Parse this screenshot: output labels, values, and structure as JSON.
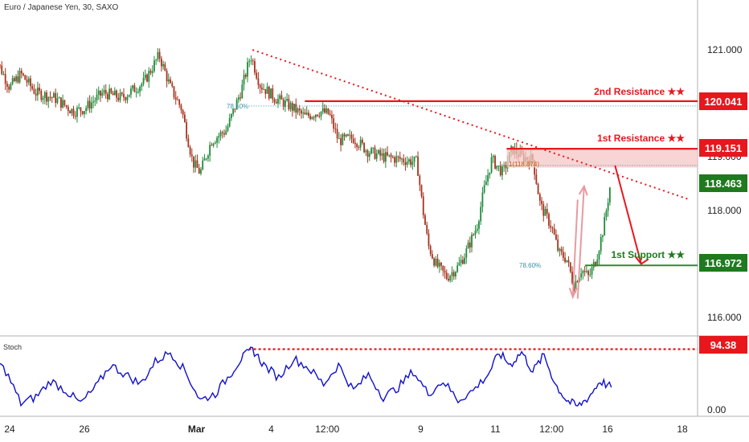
{
  "header": {
    "title": "Euro / Japanese Yen, 30, SAXO"
  },
  "indicator": {
    "label": "Stoch"
  },
  "colors": {
    "bull": "#1f8a3a",
    "bear": "#a7321d",
    "resistance": "#e8171d",
    "support": "#1f7a1f",
    "stoch": "#1010cc",
    "fib": "#3a8fa8"
  },
  "chart_data": [
    {
      "type": "candlestick",
      "title": "Euro / Japanese Yen, 30, SAXO",
      "ylim": [
        115.5,
        121.6
      ],
      "y_ticks": [
        "121.000",
        "120.000",
        "119.000",
        "118.000",
        "116.000"
      ],
      "y_tick_values": [
        121.0,
        120.0,
        119.0,
        118.0,
        116.0
      ],
      "x_ticks": [
        "24",
        "26",
        "Mar",
        "4",
        "12:00",
        "9",
        "11",
        "12:00",
        "16",
        "18"
      ],
      "x_tick_days": [
        24,
        26,
        29,
        31,
        32.5,
        35,
        37,
        38.5,
        40,
        42
      ],
      "series_path": [
        [
          23.55,
          120.95
        ],
        [
          24.0,
          120.3
        ],
        [
          24.3,
          120.55
        ],
        [
          24.7,
          120.2
        ],
        [
          25.2,
          120.1
        ],
        [
          25.7,
          119.85
        ],
        [
          26.0,
          119.9
        ],
        [
          26.5,
          120.2
        ],
        [
          27.0,
          120.1
        ],
        [
          27.6,
          120.4
        ],
        [
          28.0,
          120.9
        ],
        [
          28.3,
          120.3
        ],
        [
          28.6,
          119.9
        ],
        [
          28.9,
          118.9
        ],
        [
          29.1,
          118.7
        ],
        [
          29.4,
          119.3
        ],
        [
          29.8,
          119.5
        ],
        [
          30.2,
          120.25
        ],
        [
          30.45,
          120.9
        ],
        [
          30.7,
          120.35
        ],
        [
          31.1,
          120.1
        ],
        [
          31.5,
          119.95
        ],
        [
          31.9,
          119.75
        ],
        [
          32.3,
          119.85
        ],
        [
          32.55,
          119.8
        ],
        [
          32.8,
          119.3
        ],
        [
          33.2,
          119.35
        ],
        [
          33.6,
          119.1
        ],
        [
          34.0,
          119.0
        ],
        [
          34.5,
          118.95
        ],
        [
          34.9,
          118.9
        ],
        [
          35.05,
          118.05
        ],
        [
          35.2,
          117.35
        ],
        [
          35.4,
          117.0
        ],
        [
          35.7,
          116.75
        ],
        [
          36.0,
          116.95
        ],
        [
          36.2,
          117.2
        ],
        [
          36.5,
          117.7
        ],
        [
          36.7,
          118.4
        ],
        [
          36.9,
          118.95
        ],
        [
          37.2,
          118.7
        ],
        [
          37.45,
          119.15
        ],
        [
          37.7,
          119.0
        ],
        [
          38.0,
          118.95
        ],
        [
          38.2,
          118.1
        ],
        [
          38.5,
          117.7
        ],
        [
          38.7,
          117.2
        ],
        [
          38.9,
          117.1
        ],
        [
          39.1,
          116.6
        ],
        [
          39.3,
          116.9
        ],
        [
          39.5,
          116.75
        ],
        [
          39.7,
          117.1
        ],
        [
          39.9,
          117.7
        ],
        [
          40.1,
          118.6
        ]
      ],
      "levels": [
        {
          "name": "2nd Resistance ★★",
          "value": 120.041,
          "label": "120.041",
          "kind": "resistance"
        },
        {
          "name": "1st Resistance ★★",
          "value": 119.151,
          "label": "119.151",
          "kind": "resistance"
        },
        {
          "name": "current",
          "value": 118.463,
          "label": "118.463",
          "kind": "price"
        },
        {
          "name": "1st Support ★★",
          "value": 116.972,
          "label": "116.972",
          "kind": "support"
        }
      ],
      "annotations": [
        {
          "text": "78.60%",
          "type": "fib"
        },
        {
          "text": "1(118.874)",
          "type": "fib"
        },
        {
          "text": "78.60%",
          "type": "fib"
        }
      ],
      "resistance_zone": {
        "from": 118.8,
        "to": 119.151
      }
    },
    {
      "type": "line",
      "name": "Stoch",
      "ylim": [
        -5,
        110
      ],
      "y_ticks": [
        "0.00"
      ],
      "level": {
        "value": 94.38,
        "label": "94.38"
      },
      "x": [
        23.5,
        23.9,
        24.3,
        24.7,
        25.1,
        25.5,
        25.9,
        26.3,
        26.7,
        27.1,
        27.5,
        27.9,
        28.3,
        28.7,
        29.1,
        29.5,
        29.9,
        30.2,
        30.5,
        30.8,
        31.2,
        31.6,
        32.0,
        32.4,
        32.8,
        33.2,
        33.6,
        34.0,
        34.4,
        34.8,
        35.2,
        35.6,
        36.0,
        36.4,
        36.8,
        37.1,
        37.4,
        37.7,
        38.0,
        38.3,
        38.6,
        38.9,
        39.2,
        39.5,
        39.8,
        40.1
      ],
      "values": [
        85,
        60,
        10,
        20,
        45,
        30,
        10,
        35,
        70,
        55,
        40,
        75,
        90,
        60,
        15,
        25,
        55,
        80,
        94,
        70,
        50,
        80,
        65,
        40,
        70,
        30,
        55,
        20,
        35,
        60,
        25,
        45,
        15,
        30,
        55,
        88,
        70,
        90,
        60,
        85,
        40,
        15,
        5,
        20,
        45,
        35
      ]
    }
  ],
  "price_labels": {
    "res2": "120.041",
    "res1": "119.151",
    "current": "118.463",
    "sup1": "116.972",
    "stoch_level": "94.38"
  },
  "level_labels": {
    "res2": "2nd Resistance ★★",
    "res1": "1st Resistance ★★",
    "sup1": "1st Support ★★"
  }
}
